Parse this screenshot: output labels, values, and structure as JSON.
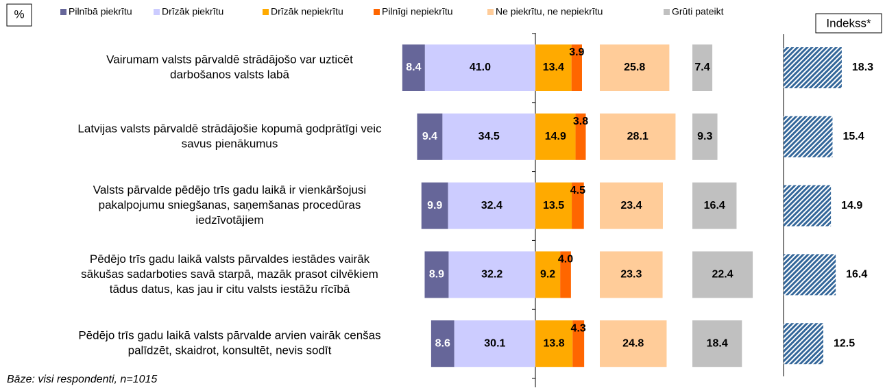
{
  "chart_data": {
    "type": "diverging-stacked-bar",
    "unit_label": "%",
    "footnote": "Bāze: visi respondenti, n=1015",
    "categories": [
      [
        "Vairumam valsts pārvaldē strādājošo var uzticēt",
        "darbošanos valsts labā"
      ],
      [
        "Latvijas valsts pārvaldē strādājošie kopumā godprātīgi veic",
        "savus pienākumus"
      ],
      [
        "Valsts pārvalde pēdējo trīs gadu laikā ir vienkāršojusi",
        "pakalpojumu sniegšanas, saņemšanas procedūras",
        "iedzīvotājiem"
      ],
      [
        "Pēdējo trīs gadu laikā valsts pārvaldes iestādes vairāk",
        "sākušas sadarboties savā starpā, mazāk prasot cilvēkiem",
        "tādus datus, kas jau ir citu valsts iestāžu rīcībā"
      ],
      [
        "Pēdējo trīs gadu laikā valsts pārvalde arvien vairāk cenšas",
        "palīdzēt, skaidrot, konsultēt, nevis sodīt"
      ]
    ],
    "series": [
      {
        "name": "Pilnībā piekrītu",
        "color": "#666699",
        "values": [
          8.4,
          9.4,
          9.9,
          8.9,
          8.6
        ],
        "value_labels": [
          "8.4",
          "9.4",
          "9.9",
          "8.9",
          "8.6"
        ]
      },
      {
        "name": "Drīzāk piekrītu",
        "color": "#ccccff",
        "values": [
          41.0,
          34.5,
          32.4,
          32.2,
          30.1
        ],
        "value_labels": [
          "41.0",
          "34.5",
          "32.4",
          "32.2",
          "30.1"
        ]
      },
      {
        "name": "Drīzāk nepiekrītu",
        "color": "#ffaa00",
        "values": [
          13.4,
          14.9,
          13.5,
          9.2,
          13.8
        ],
        "value_labels": [
          "13.4",
          "14.9",
          "13.5",
          "9.2",
          "13.8"
        ]
      },
      {
        "name": "Pilnīgi nepiekrītu",
        "color": "#ff6600",
        "values": [
          3.9,
          3.8,
          4.5,
          4.0,
          4.3
        ],
        "value_labels": [
          "3.9",
          "3.8",
          "4.5",
          "4.0",
          "4.3"
        ]
      },
      {
        "name": "Ne piekrītu, ne nepiekrītu",
        "color": "#ffcc99",
        "values": [
          25.8,
          28.1,
          23.4,
          23.3,
          24.8
        ],
        "value_labels": [
          "25.8",
          "28.1",
          "23.4",
          "23.3",
          "24.8"
        ]
      },
      {
        "name": "Grūti pateikt",
        "color": "#c0c0c0",
        "values": [
          7.4,
          9.3,
          16.4,
          22.4,
          18.4
        ],
        "value_labels": [
          "7.4",
          "9.3",
          "16.4",
          "22.4",
          "18.4"
        ]
      }
    ],
    "index": {
      "name": "Indekss*",
      "color": "#336699",
      "values": [
        18.3,
        15.4,
        14.9,
        16.4,
        12.5
      ],
      "value_labels": [
        "18.3",
        "15.4",
        "14.9",
        "16.4",
        "12.5"
      ]
    }
  }
}
